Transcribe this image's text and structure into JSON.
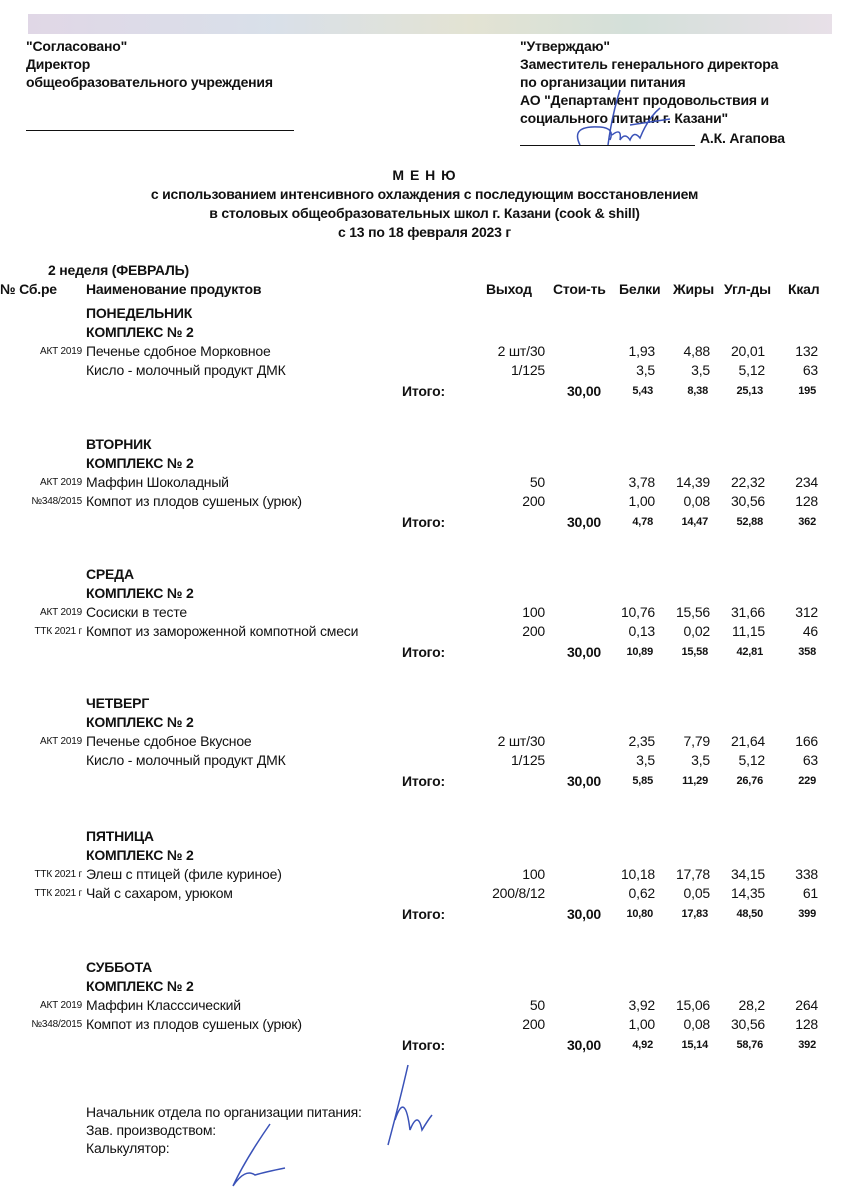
{
  "header_left": {
    "line1": "\"Согласовано\"",
    "line2": "Директор",
    "line3": "общеобразовательного учреждения"
  },
  "header_right": {
    "line1": "\"Утверждаю\"",
    "line2": "Заместитель генерального директора",
    "line3": "по организации питания",
    "line4": "АО \"Департамент продовольствия и",
    "line5": "социального питани г. Казани\"",
    "signer": "А.К. Агапова"
  },
  "title": {
    "main": "М Е Н Ю",
    "line1": "с использованием интенсивного охлаждения с последующим восстановлением",
    "line2": "в столовых общеобразовательных школ г. Казани (cook & shill)",
    "line3": "с  13  по  18  февраля  2023 г"
  },
  "week": "2 неделя (ФЕВРАЛЬ)",
  "columns": {
    "code": "№ Сб.ре",
    "name": "Наименование продуктов",
    "yield": "Выход",
    "cost": "Стои-ть",
    "protein": "Белки",
    "fat": "Жиры",
    "carbs": "Угл-ды",
    "kcal": "Ккал"
  },
  "total_label": "Итого:",
  "days": [
    {
      "day": "ПОНЕДЕЛЬНИК",
      "complex": "КОМПЛЕКС № 2",
      "items": [
        {
          "code": "АКТ 2019",
          "name": "Печенье сдобное Морковное",
          "yield": "2 шт/30",
          "protein": "1,93",
          "fat": "4,88",
          "carbs": "20,01",
          "kcal": "132"
        },
        {
          "code": "",
          "name": "Кисло - молочный продукт ДМК",
          "yield": "1/125",
          "protein": "3,5",
          "fat": "3,5",
          "carbs": "5,12",
          "kcal": "63"
        }
      ],
      "total": {
        "cost": "30,00",
        "protein": "5,43",
        "fat": "8,38",
        "carbs": "25,13",
        "kcal": "195"
      }
    },
    {
      "day": "ВТОРНИК",
      "complex": "КОМПЛЕКС № 2",
      "items": [
        {
          "code": "АКТ 2019",
          "name": "Маффин Шоколадный",
          "yield": "50",
          "protein": "3,78",
          "fat": "14,39",
          "carbs": "22,32",
          "kcal": "234"
        },
        {
          "code": "№348/2015",
          "name": "Компот из плодов сушеных (урюк)",
          "yield": "200",
          "protein": "1,00",
          "fat": "0,08",
          "carbs": "30,56",
          "kcal": "128"
        }
      ],
      "total": {
        "cost": "30,00",
        "protein": "4,78",
        "fat": "14,47",
        "carbs": "52,88",
        "kcal": "362"
      }
    },
    {
      "day": "СРЕДА",
      "complex": "КОМПЛЕКС № 2",
      "items": [
        {
          "code": "АКТ 2019",
          "name": "Сосиски в тесте",
          "yield": "100",
          "protein": "10,76",
          "fat": "15,56",
          "carbs": "31,66",
          "kcal": "312"
        },
        {
          "code": "ТТК 2021 г",
          "name": "Компот из замороженной компотной смеси",
          "yield": "200",
          "protein": "0,13",
          "fat": "0,02",
          "carbs": "11,15",
          "kcal": "46"
        }
      ],
      "total": {
        "cost": "30,00",
        "protein": "10,89",
        "fat": "15,58",
        "carbs": "42,81",
        "kcal": "358"
      }
    },
    {
      "day": "ЧЕТВЕРГ",
      "complex": "КОМПЛЕКС № 2",
      "items": [
        {
          "code": "АКТ 2019",
          "name": "Печенье сдобное Вкусное",
          "yield": "2 шт/30",
          "protein": "2,35",
          "fat": "7,79",
          "carbs": "21,64",
          "kcal": "166"
        },
        {
          "code": "",
          "name": "Кисло - молочный продукт ДМК",
          "yield": "1/125",
          "protein": "3,5",
          "fat": "3,5",
          "carbs": "5,12",
          "kcal": "63"
        }
      ],
      "total": {
        "cost": "30,00",
        "protein": "5,85",
        "fat": "11,29",
        "carbs": "26,76",
        "kcal": "229"
      }
    },
    {
      "day": "ПЯТНИЦА",
      "complex": "КОМПЛЕКС № 2",
      "items": [
        {
          "code": "ТТК 2021 г",
          "name": "Элеш с птицей (филе куриное)",
          "yield": "100",
          "protein": "10,18",
          "fat": "17,78",
          "carbs": "34,15",
          "kcal": "338"
        },
        {
          "code": "ТТК 2021 г",
          "name": "Чай с сахаром, урюком",
          "yield": "200/8/12",
          "protein": "0,62",
          "fat": "0,05",
          "carbs": "14,35",
          "kcal": "61"
        }
      ],
      "total": {
        "cost": "30,00",
        "protein": "10,80",
        "fat": "17,83",
        "carbs": "48,50",
        "kcal": "399"
      }
    },
    {
      "day": "СУББОТА",
      "complex": "КОМПЛЕКС № 2",
      "items": [
        {
          "code": "АКТ 2019",
          "name": "Маффин Класссический",
          "yield": "50",
          "protein": "3,92",
          "fat": "15,06",
          "carbs": "28,2",
          "kcal": "264"
        },
        {
          "code": "№348/2015",
          "name": "Компот из плодов сушеных (урюк)",
          "yield": "200",
          "protein": "1,00",
          "fat": "0,08",
          "carbs": "30,56",
          "kcal": "128"
        }
      ],
      "total": {
        "cost": "30,00",
        "protein": "4,92",
        "fat": "15,14",
        "carbs": "58,76",
        "kcal": "392"
      }
    }
  ],
  "footer": {
    "line1": "Начальник отдела по организации питания:",
    "line2": "Зав. производством:",
    "line3": "Калькулятор:"
  },
  "colors": {
    "signature_ink": "#3a52b8",
    "text": "#111111"
  }
}
